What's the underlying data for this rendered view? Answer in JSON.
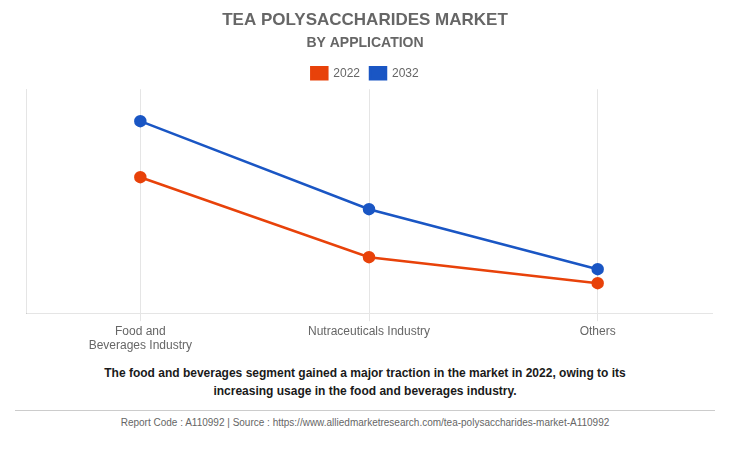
{
  "chart_data": {
    "type": "line",
    "title": "TEA POLYSACCHARIDES MARKET",
    "subtitle": "BY APPLICATION",
    "categories": [
      "Food and\nBeverages Industry",
      "Nutraceuticals Industry",
      "Others"
    ],
    "series": [
      {
        "name": "2022",
        "color": "#E8420A",
        "values": [
          0.68,
          0.28,
          0.15
        ]
      },
      {
        "name": "2032",
        "color": "#1A56C4",
        "values": [
          0.96,
          0.52,
          0.22
        ]
      }
    ],
    "ylim": [
      0.0,
      1.12
    ],
    "yticks": [],
    "tick_labels": "x",
    "grid": true,
    "legend": "top",
    "marker": "circle",
    "line_style": "solid",
    "annotations": [
      "The food and beverages segment gained a major traction in the market in 2022, owing to its\nincreasing usage in the food and beverages industry.",
      "Report Code : A110992  |  Source : https://www.alliedmarketresearch.com/tea-polysaccharides-market-A110992"
    ]
  }
}
